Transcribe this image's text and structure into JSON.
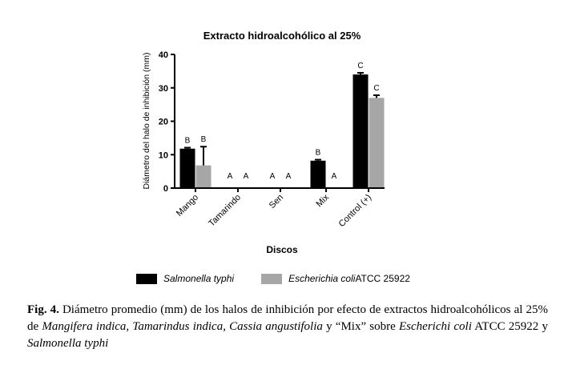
{
  "chart_data": {
    "type": "bar",
    "title": "Extracto hidroalcohólico al 25%",
    "xlabel": "Discos",
    "ylabel": "Diámetro del halo de inhibición (mm)",
    "ylim": [
      0,
      40
    ],
    "yticks": [
      "0",
      "10",
      "20",
      "30",
      "40"
    ],
    "categories": [
      "Mango",
      "Tamarindo",
      "Sen",
      "Mix",
      "Control (+)"
    ],
    "series": [
      {
        "name": "Salmonella typhi",
        "color": "#000000",
        "values": [
          11.8,
          0,
          0,
          8.2,
          34.0
        ],
        "errors": [
          0.3,
          0,
          0,
          0.3,
          0.5
        ],
        "letters": [
          "B",
          "A",
          "A",
          "B",
          "C"
        ]
      },
      {
        "name": "Escherichia coli ATCC 25922",
        "color": "#a6a6a6",
        "values": [
          6.8,
          0,
          0,
          0,
          27.0
        ],
        "errors": [
          5.6,
          0,
          0,
          0,
          0.8
        ],
        "letters": [
          "B",
          "A",
          "A",
          "A",
          "C"
        ]
      }
    ],
    "legend_position": "bottom"
  },
  "legend": {
    "s1_name": "Salmonella typhi",
    "s2_name_italic": "Escherichia coli",
    "s2_name_plain": "ATCC 25922"
  },
  "caption": {
    "label": "Fig. 4.",
    "text1": " Diámetro promedio (mm) de los halos de inhibición por efecto de extractos hidroalcohólicos al 25% de ",
    "species1": "Mangifera indica, Tamarindus indica, Cassia angustifolia",
    "text2": " y “Mix” sobre ",
    "species2": "Escherichi coli",
    "text3": " ATCC 25922 y ",
    "species3": "Salmonella typhi"
  }
}
